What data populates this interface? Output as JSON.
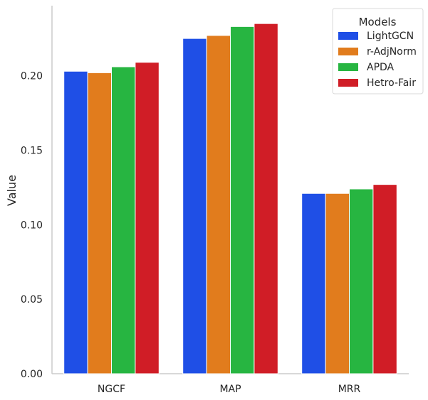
{
  "chart_data": {
    "type": "bar",
    "categories": [
      "NGCF",
      "MAP",
      "MRR"
    ],
    "series": [
      {
        "name": "LightGCN",
        "color": "#1f4fe6",
        "values": [
          0.203,
          0.225,
          0.121
        ]
      },
      {
        "name": "r-AdjNorm",
        "color": "#e17c1d",
        "values": [
          0.202,
          0.227,
          0.121
        ]
      },
      {
        "name": "APDA",
        "color": "#27b541",
        "values": [
          0.206,
          0.233,
          0.124
        ]
      },
      {
        "name": "Hetro-Fair",
        "color": "#d01d26",
        "values": [
          0.209,
          0.235,
          0.127
        ]
      }
    ],
    "ylabel": "Value",
    "xlabel": "",
    "ylim": [
      0,
      0.247
    ],
    "yticks": [
      0.0,
      0.05,
      0.1,
      0.15,
      0.2
    ],
    "ytick_labels": [
      "0.00",
      "0.05",
      "0.10",
      "0.15",
      "0.20"
    ],
    "legend": {
      "title": "Models",
      "position": "top-right"
    },
    "grid": false
  }
}
